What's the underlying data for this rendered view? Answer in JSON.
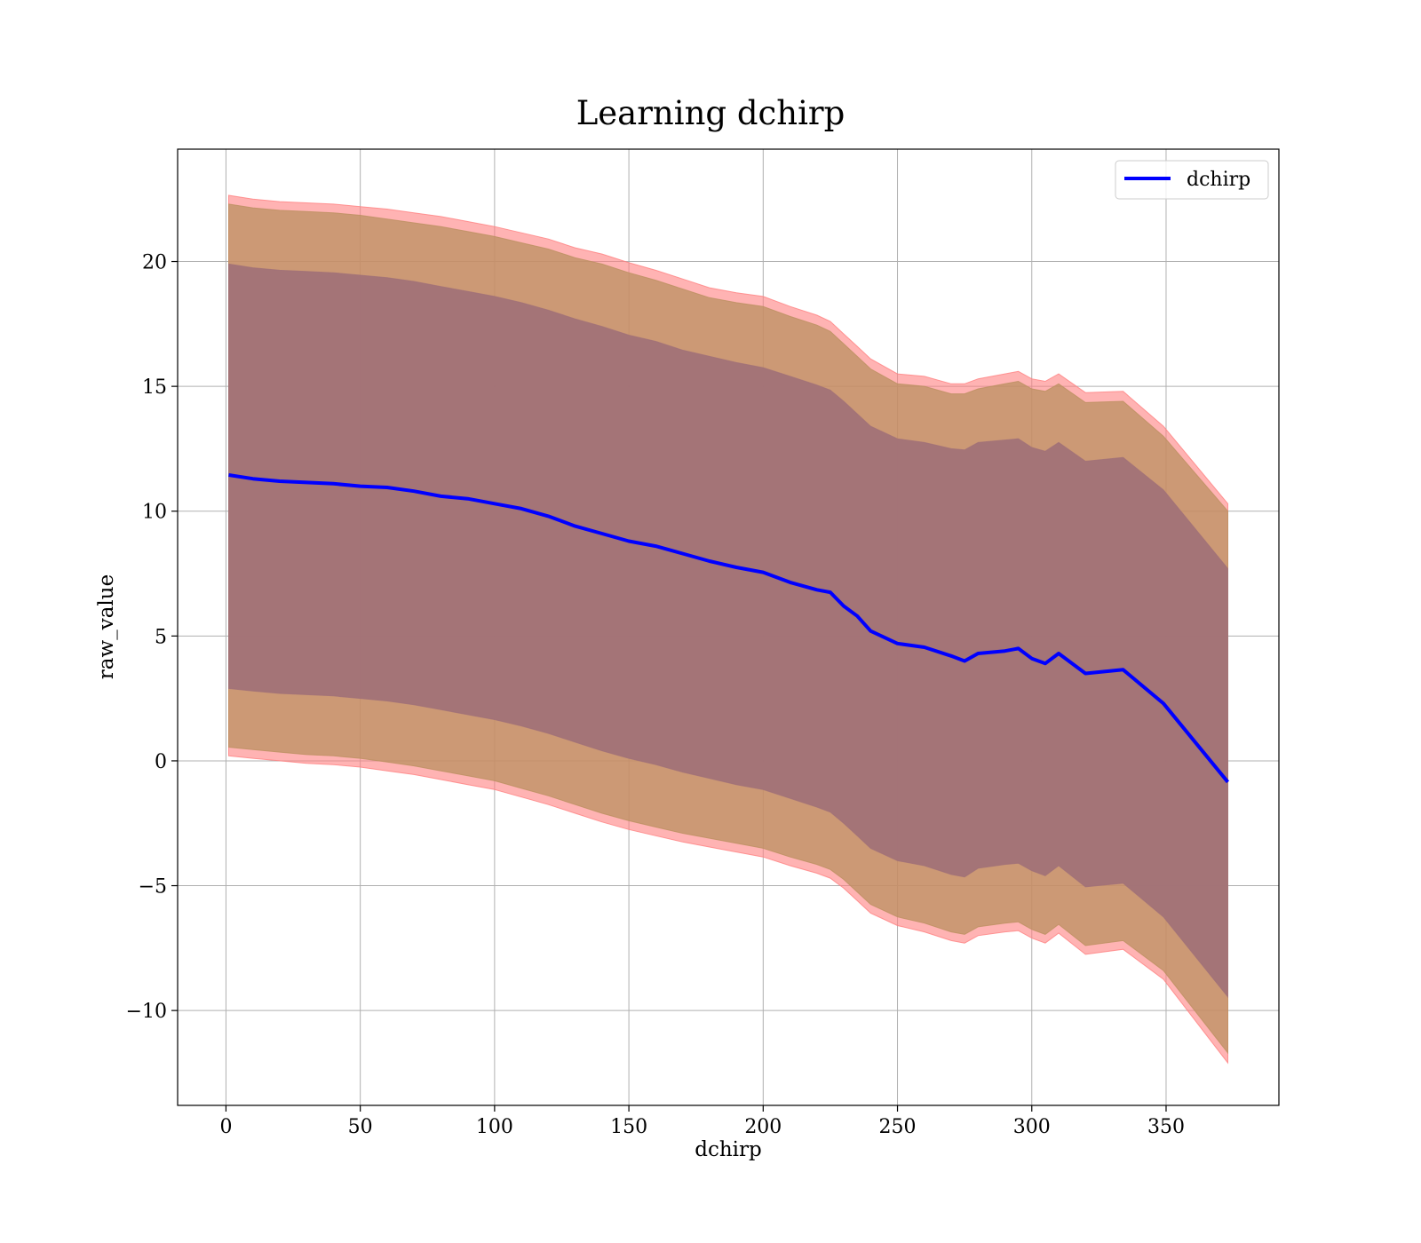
{
  "chart_data": {
    "type": "area",
    "title": "Learning dchirp",
    "xlabel": "dchirp",
    "ylabel": "raw_value",
    "xlim": [
      -18,
      392
    ],
    "ylim": [
      -13.8,
      24.5
    ],
    "xticks": [
      0,
      50,
      100,
      150,
      200,
      250,
      300,
      350
    ],
    "yticks": [
      -10,
      -5,
      0,
      5,
      10,
      15,
      20
    ],
    "ytick_labels": [
      "−10",
      "−5",
      "0",
      "5",
      "10",
      "15",
      "20"
    ],
    "grid": true,
    "legend": {
      "position": "top-right",
      "entries": [
        "dchirp"
      ]
    },
    "colors": {
      "mean_line": "#0000ff",
      "outer_band": "#ff8080",
      "middle_band": "#bb9060",
      "inner_band": "#a07078"
    },
    "x": [
      1,
      10,
      20,
      30,
      40,
      50,
      60,
      70,
      80,
      90,
      100,
      110,
      120,
      130,
      140,
      150,
      160,
      170,
      180,
      190,
      200,
      210,
      220,
      225,
      230,
      235,
      240,
      250,
      260,
      270,
      275,
      280,
      290,
      295,
      300,
      305,
      310,
      320,
      334,
      349,
      373
    ],
    "series": [
      {
        "name": "dchirp",
        "values": [
          11.45,
          11.3,
          11.2,
          11.15,
          11.1,
          11.0,
          10.95,
          10.8,
          10.6,
          10.5,
          10.3,
          10.1,
          9.8,
          9.4,
          9.1,
          8.8,
          8.6,
          8.3,
          8.0,
          7.75,
          7.55,
          7.15,
          6.85,
          6.75,
          6.2,
          5.8,
          5.2,
          4.7,
          4.55,
          4.2,
          4.0,
          4.3,
          4.4,
          4.5,
          4.1,
          3.9,
          4.3,
          3.5,
          3.65,
          2.3,
          -0.85
        ]
      }
    ],
    "bands": [
      {
        "upper": [
          22.65,
          22.5,
          22.4,
          22.35,
          22.3,
          22.2,
          22.1,
          21.95,
          21.8,
          21.6,
          21.4,
          21.15,
          20.9,
          20.55,
          20.3,
          19.95,
          19.65,
          19.3,
          18.95,
          18.75,
          18.6,
          18.2,
          17.85,
          17.6,
          17.1,
          16.6,
          16.1,
          15.5,
          15.4,
          15.1,
          15.1,
          15.3,
          15.5,
          15.6,
          15.3,
          15.2,
          15.5,
          14.75,
          14.8,
          13.4,
          10.3
        ],
        "lower": [
          0.2,
          0.1,
          0.0,
          -0.1,
          -0.15,
          -0.25,
          -0.4,
          -0.55,
          -0.75,
          -0.95,
          -1.15,
          -1.45,
          -1.75,
          -2.1,
          -2.45,
          -2.75,
          -3.0,
          -3.25,
          -3.45,
          -3.65,
          -3.85,
          -4.2,
          -4.5,
          -4.7,
          -5.1,
          -5.6,
          -6.1,
          -6.6,
          -6.85,
          -7.2,
          -7.3,
          -7.0,
          -6.85,
          -6.8,
          -7.1,
          -7.3,
          -6.9,
          -7.75,
          -7.55,
          -8.75,
          -12.1
        ]
      },
      {
        "upper": [
          22.3,
          22.15,
          22.05,
          22.0,
          21.95,
          21.85,
          21.7,
          21.55,
          21.4,
          21.2,
          21.0,
          20.75,
          20.5,
          20.15,
          19.9,
          19.55,
          19.25,
          18.9,
          18.55,
          18.35,
          18.2,
          17.8,
          17.45,
          17.2,
          16.7,
          16.2,
          15.7,
          15.1,
          15.0,
          14.7,
          14.7,
          14.9,
          15.1,
          15.2,
          14.9,
          14.8,
          15.1,
          14.35,
          14.4,
          13.0,
          10.0
        ],
        "lower": [
          0.55,
          0.45,
          0.35,
          0.25,
          0.2,
          0.1,
          -0.05,
          -0.2,
          -0.4,
          -0.6,
          -0.8,
          -1.1,
          -1.4,
          -1.75,
          -2.1,
          -2.4,
          -2.65,
          -2.9,
          -3.1,
          -3.3,
          -3.5,
          -3.85,
          -4.15,
          -4.35,
          -4.75,
          -5.25,
          -5.75,
          -6.25,
          -6.5,
          -6.85,
          -6.95,
          -6.65,
          -6.5,
          -6.45,
          -6.75,
          -6.95,
          -6.55,
          -7.4,
          -7.2,
          -8.4,
          -11.7
        ]
      },
      {
        "upper": [
          19.9,
          19.75,
          19.65,
          19.6,
          19.55,
          19.45,
          19.35,
          19.2,
          19.0,
          18.8,
          18.6,
          18.35,
          18.05,
          17.7,
          17.4,
          17.05,
          16.8,
          16.45,
          16.2,
          15.95,
          15.75,
          15.4,
          15.05,
          14.85,
          14.4,
          13.9,
          13.4,
          12.9,
          12.75,
          12.5,
          12.45,
          12.75,
          12.85,
          12.9,
          12.55,
          12.4,
          12.75,
          12.0,
          12.15,
          10.85,
          7.7
        ],
        "lower": [
          2.9,
          2.8,
          2.7,
          2.65,
          2.6,
          2.5,
          2.4,
          2.25,
          2.05,
          1.85,
          1.65,
          1.4,
          1.1,
          0.75,
          0.4,
          0.1,
          -0.15,
          -0.45,
          -0.7,
          -0.95,
          -1.15,
          -1.5,
          -1.85,
          -2.05,
          -2.5,
          -3.0,
          -3.5,
          -4.0,
          -4.2,
          -4.55,
          -4.65,
          -4.3,
          -4.15,
          -4.1,
          -4.4,
          -4.6,
          -4.2,
          -5.05,
          -4.9,
          -6.25,
          -9.45
        ]
      }
    ]
  }
}
